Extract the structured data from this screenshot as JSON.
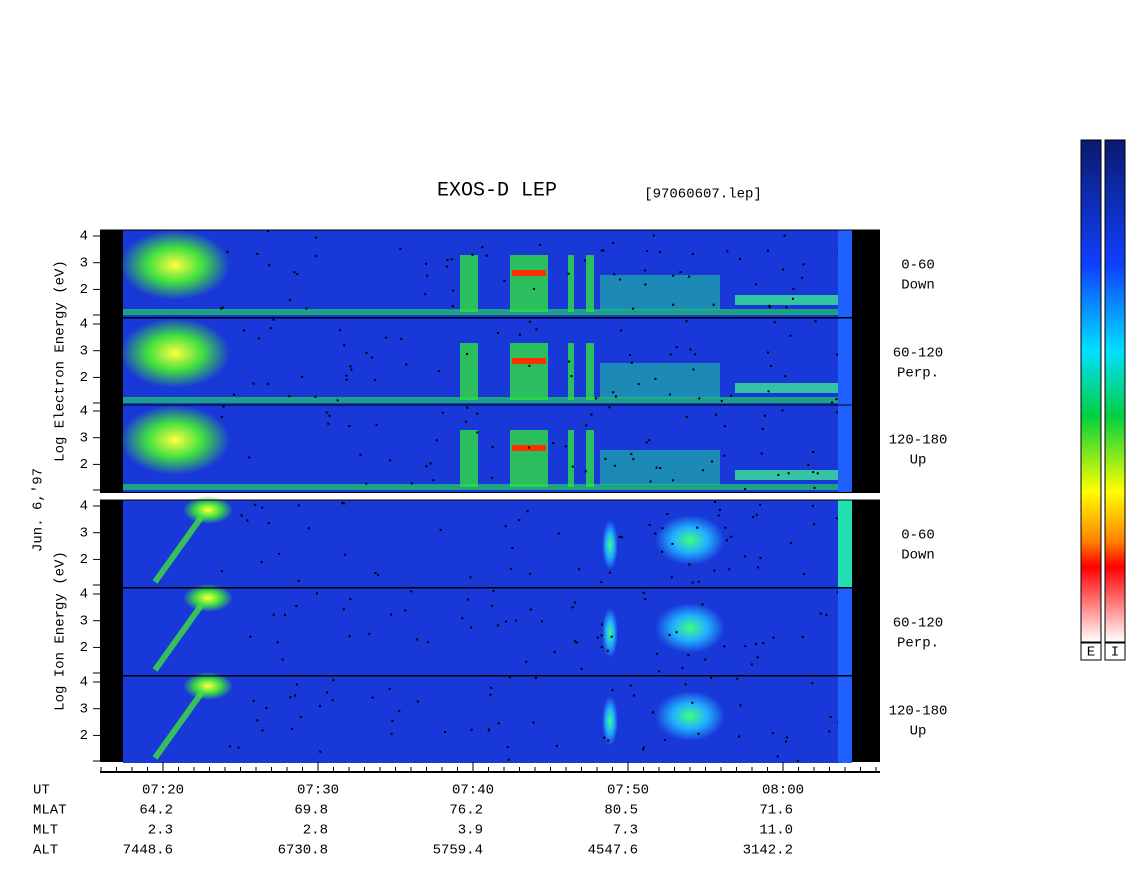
{
  "header": {
    "title": "EXOS-D LEP",
    "file": "[97060607.lep]"
  },
  "date": "Jun. 6,'97",
  "groups": [
    {
      "ylabel": "Log Electron Energy (eV)",
      "panels": [
        {
          "angle": "0-60",
          "direction": "Down"
        },
        {
          "angle": "60-120",
          "direction": "Perp."
        },
        {
          "angle": "120-180",
          "direction": "Up"
        }
      ]
    },
    {
      "ylabel": "Log Ion Energy (eV)",
      "panels": [
        {
          "angle": "0-60",
          "direction": "Down"
        },
        {
          "angle": "60-120",
          "direction": "Perp."
        },
        {
          "angle": "120-180",
          "direction": "Up"
        }
      ]
    }
  ],
  "energy_ticks": [
    2,
    3,
    4
  ],
  "ephemeris": {
    "rows": [
      [
        "UT",
        "07:20",
        "07:30",
        "07:40",
        "07:50",
        "08:00"
      ],
      [
        "MLAT",
        "64.2",
        "69.8",
        "76.2",
        "80.5",
        "71.6"
      ],
      [
        "MLT",
        "2.3",
        "2.8",
        "3.9",
        "7.3",
        "11.0"
      ],
      [
        "ALT",
        "7448.6",
        "6730.8",
        "5759.4",
        "4547.6",
        "3142.2"
      ]
    ]
  },
  "colorbars": [
    "E",
    "I"
  ]
}
